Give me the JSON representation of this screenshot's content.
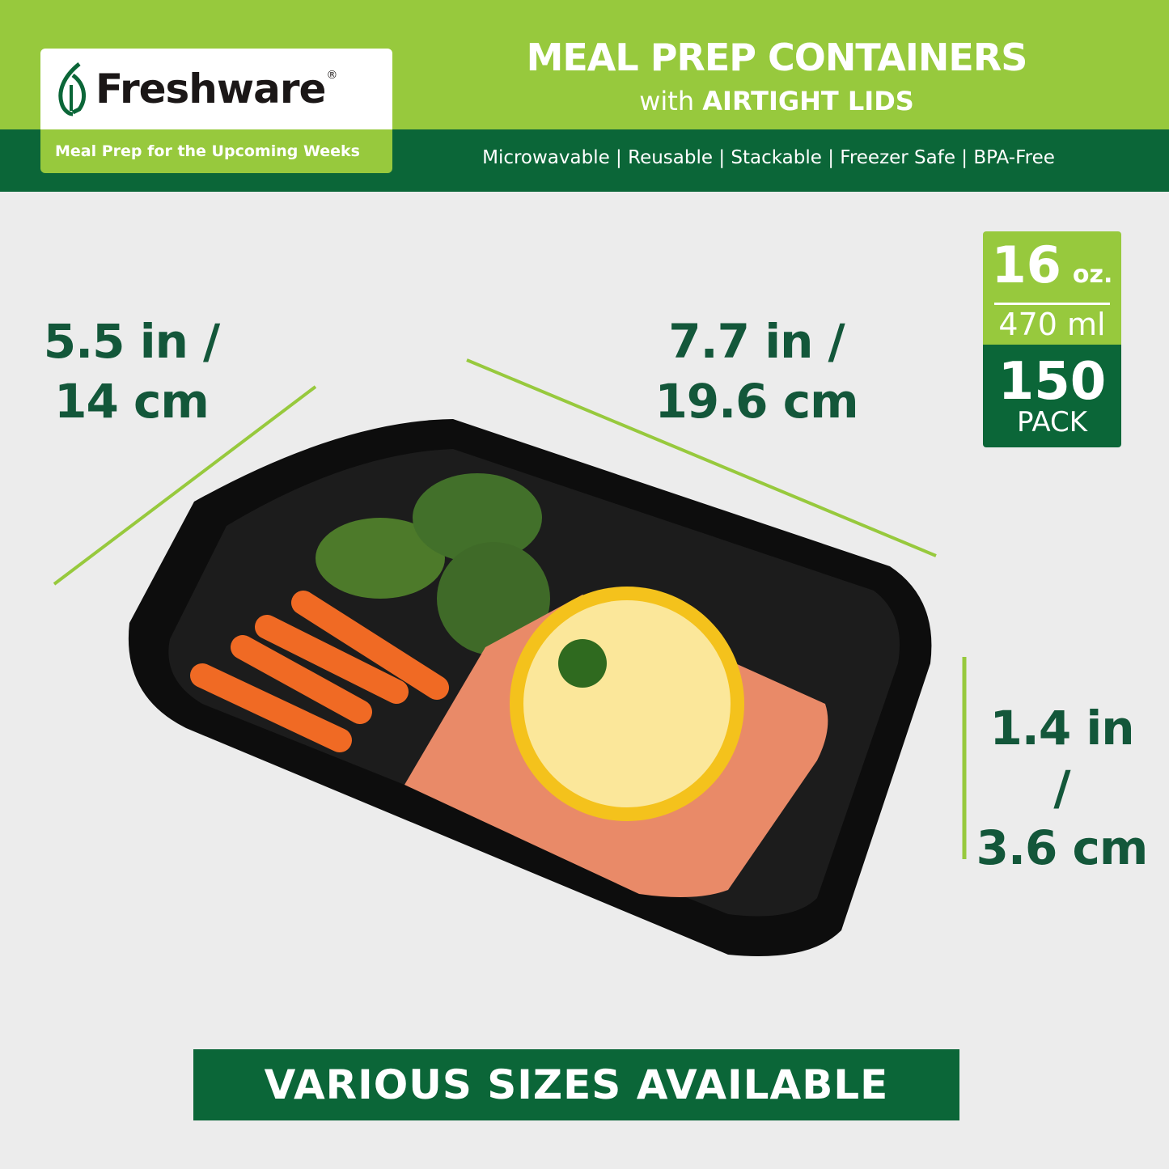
{
  "colors": {
    "light_green": "#97c93d",
    "dark_green": "#0b6638",
    "text_green": "#13573a",
    "background": "#ececec"
  },
  "logo": {
    "brand": "Freshware",
    "registered": "®",
    "tagline": "Meal Prep for the Upcoming Weeks",
    "icon": "leaf-icon"
  },
  "header": {
    "title": "MEAL PREP CONTAINERS",
    "subtitle_prefix": "with",
    "subtitle_bold": "AIRTIGHT LIDS",
    "features": "Microwavable | Reusable | Stackable | Freezer Safe | BPA-Free"
  },
  "dimensions": {
    "width_line1": "5.5 in /",
    "width_line2": "14 cm",
    "length_line1": "7.7 in /",
    "length_line2": "19.6 cm",
    "height_line1": "1.4 in /",
    "height_line2": "3.6 cm"
  },
  "badge": {
    "size_oz": "16",
    "oz_unit": "oz.",
    "size_ml": "470 ml",
    "pack_count": "150",
    "pack_label": "PACK"
  },
  "banner": {
    "text": "VARIOUS SIZES AVAILABLE"
  }
}
